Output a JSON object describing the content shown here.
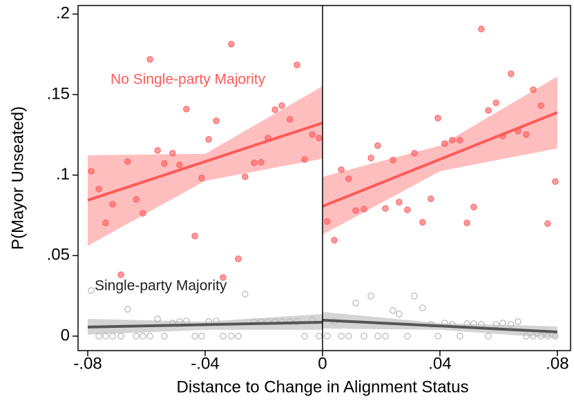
{
  "chart_data": {
    "type": "scatter",
    "xlabel": "Distance to Change in Alignment Status",
    "ylabel": "P(Mayor Unseated)",
    "xlim": [
      -0.0833,
      0.0845
    ],
    "ylim": [
      -0.009,
      0.2053
    ],
    "xticks": [
      {
        "value": -0.08,
        "label": "-.08"
      },
      {
        "value": -0.04,
        "label": "-.04"
      },
      0,
      {
        "value": 0.04,
        "label": ".04"
      },
      {
        "value": 0.08,
        "label": ".08"
      }
    ],
    "yticks": [
      0,
      {
        "value": 0.05,
        "label": ".05"
      },
      {
        "value": 0.1,
        "label": ".1"
      },
      {
        "value": 0.15,
        "label": ".15"
      },
      {
        "value": 0.2,
        "label": ".2"
      }
    ],
    "cutoff": 0,
    "series": [
      {
        "name": "No Single-party Majority",
        "color": "#ff5a5a",
        "hollow": false,
        "x": [
          -0.0788,
          -0.0762,
          -0.0739,
          -0.0715,
          -0.0687,
          -0.0664,
          -0.0635,
          -0.0612,
          -0.0588,
          -0.0562,
          -0.0539,
          -0.0511,
          -0.0487,
          -0.0464,
          -0.0435,
          -0.0412,
          -0.0388,
          -0.0362,
          -0.0339,
          -0.0311,
          -0.0287,
          -0.0264,
          -0.0233,
          -0.0209,
          -0.0186,
          -0.0162,
          -0.0139,
          -0.0111,
          -0.0087,
          -0.0061,
          -0.0035,
          -0.0012,
          0.0016,
          0.004,
          0.0064,
          0.0089,
          0.0113,
          0.0141,
          0.0165,
          0.0188,
          0.0214,
          0.024,
          0.0261,
          0.0289,
          0.0313,
          0.0341,
          0.0369,
          0.0393,
          0.0416,
          0.0442,
          0.0468,
          0.0492,
          0.0515,
          0.0541,
          0.0565,
          0.0591,
          0.0614,
          0.0642,
          0.0666,
          0.0694,
          0.0718,
          0.0744,
          0.0767,
          0.0793
        ],
        "values": [
          0.1024,
          0.0913,
          0.0703,
          0.0819,
          0.0381,
          0.1084,
          0.0849,
          0.0763,
          0.1719,
          0.1153,
          0.1072,
          0.1136,
          0.1063,
          0.141,
          0.0622,
          0.0982,
          0.1222,
          0.1337,
          0.0364,
          0.1813,
          0.048,
          0.099,
          0.1076,
          0.108,
          0.123,
          0.1406,
          0.1432,
          0.1346,
          0.1684,
          0.1097,
          0.1252,
          0.123,
          0.0712,
          0.0596,
          0.1033,
          0.0977,
          0.078,
          0.0789,
          0.1106,
          0.1183,
          0.0793,
          0.1093,
          0.0832,
          0.0784,
          0.1136,
          0.0707,
          0.0853,
          0.1354,
          0.1196,
          0.1217,
          0.1217,
          0.0703,
          0.0802,
          0.1907,
          0.1402,
          0.1449,
          0.1243,
          0.1629,
          0.1273,
          0.1252,
          0.153,
          0.1432,
          0.0699,
          0.096
        ]
      },
      {
        "name": "Single-party Majority",
        "color": "#555555",
        "hollow": true,
        "x": [
          -0.0788,
          -0.0762,
          -0.0739,
          -0.0715,
          -0.0687,
          -0.0664,
          -0.0635,
          -0.0612,
          -0.0588,
          -0.0562,
          -0.0539,
          -0.0511,
          -0.0487,
          -0.0464,
          -0.0435,
          -0.0412,
          -0.0388,
          -0.0362,
          -0.0339,
          -0.0311,
          -0.0287,
          -0.0264,
          -0.0233,
          -0.0209,
          -0.0186,
          -0.0162,
          -0.0139,
          -0.0111,
          -0.0087,
          -0.0061,
          -0.0035,
          -0.0012,
          0.0016,
          0.004,
          0.0064,
          0.0089,
          0.0113,
          0.0141,
          0.0165,
          0.0188,
          0.0214,
          0.024,
          0.0261,
          0.0289,
          0.0313,
          0.0341,
          0.0369,
          0.0393,
          0.0416,
          0.0442,
          0.0468,
          0.0492,
          0.0515,
          0.0541,
          0.0565,
          0.0591,
          0.0614,
          0.0642,
          0.0666,
          0.0694,
          0.0718,
          0.0744,
          0.0767,
          0.0793
        ],
        "values": [
          0.0283,
          0,
          0,
          0,
          0,
          0.0167,
          0,
          0,
          0,
          0.0107,
          0,
          0.0081,
          0.009,
          0.0094,
          0,
          0,
          0.009,
          0.0094,
          0,
          0,
          0,
          0.0261,
          0.009,
          0.009,
          0.009,
          0.009,
          0.009,
          0.009,
          0.009,
          0,
          0.0099,
          0,
          0,
          0.009,
          0,
          0,
          0.0206,
          0,
          0.0249,
          0,
          0,
          0.0159,
          0.0137,
          0,
          0.0249,
          0.0176,
          0.0073,
          0,
          0.0081,
          0.0073,
          0,
          0.0077,
          0.0077,
          0.0073,
          0,
          0.0073,
          0.0081,
          0.0073,
          0.009,
          0,
          0,
          0,
          0,
          0
        ]
      }
    ],
    "fits": [
      {
        "color": "#ff5a5a",
        "band_color": "#ffb3b3",
        "x": [
          -0.08,
          -0.04,
          0
        ],
        "values": [
          0.0844,
          0.1084,
          0.1324
        ],
        "lower": [
          0.0561,
          0.0964,
          0.1102
        ],
        "upper": [
          0.1123,
          0.1132,
          0.1552
        ]
      },
      {
        "color": "#ff5a5a",
        "band_color": "#ffb3b3",
        "x": [
          0,
          0.04,
          0.08
        ],
        "values": [
          0.0806,
          0.1098,
          0.1389
        ],
        "lower": [
          0.063,
          0.1024,
          0.1166
        ],
        "upper": [
          0.099,
          0.1183,
          0.1612
        ]
      },
      {
        "color": "#555555",
        "band_color": "#cccccc",
        "x": [
          -0.08,
          -0.04,
          0
        ],
        "values": [
          0.0056,
          0.0071,
          0.0086
        ],
        "lower": [
          0.0009,
          0.0039,
          0.0039
        ],
        "upper": [
          0.0107,
          0.009,
          0.0137
        ]
      },
      {
        "color": "#555555",
        "band_color": "#cccccc",
        "x": [
          0,
          0.04,
          0.08
        ],
        "values": [
          0.0099,
          0.0063,
          0.0026
        ],
        "lower": [
          0.0047,
          0.0039,
          -0.0013
        ],
        "upper": [
          0.015,
          0.0081,
          0.006
        ]
      }
    ]
  }
}
